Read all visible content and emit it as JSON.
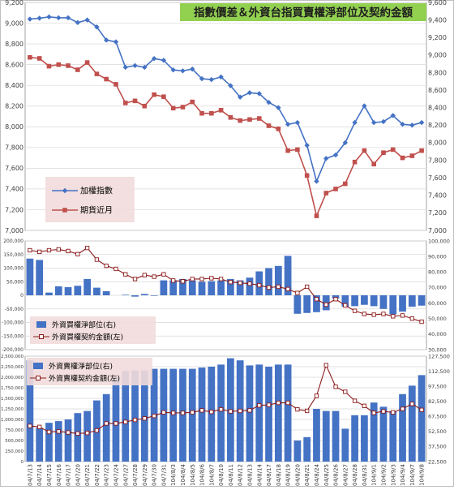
{
  "title": "指數價差＆外資台指買賣權淨部位及契約金額",
  "dates": [
    "104/7/13",
    "104/7/14",
    "104/7/15",
    "104/7/16",
    "104/7/17",
    "104/7/20",
    "104/7/21",
    "104/7/22",
    "104/7/23",
    "104/7/24",
    "104/7/27",
    "104/7/28",
    "104/7/29",
    "104/7/30",
    "104/7/31",
    "104/8/3",
    "104/8/4",
    "104/8/5",
    "104/8/6",
    "104/8/7",
    "104/8/10",
    "104/8/11",
    "104/8/12",
    "104/8/13",
    "104/8/14",
    "104/8/17",
    "104/8/18",
    "104/8/19",
    "104/8/20",
    "104/8/21",
    "104/8/24",
    "104/8/25",
    "104/8/26",
    "104/8/27",
    "104/8/28",
    "104/8/31",
    "104/9/1",
    "104/9/2",
    "104/9/3",
    "104/9/4",
    "104/9/7",
    "104/9/8"
  ],
  "chart_data": [
    {
      "type": "line",
      "title": "指數價差＆外資台指買賣權淨部位及契約金額",
      "y_left": {
        "ticks": [
          7000,
          7200,
          7400,
          7600,
          7800,
          8000,
          8200,
          8400,
          8600,
          8800,
          9000,
          9200
        ],
        "range": [
          7000,
          9200
        ]
      },
      "y_right": {
        "ticks": [
          7000,
          7200,
          7400,
          7600,
          7800,
          8000,
          8200,
          8400,
          8600,
          8800,
          9000,
          9200,
          9400,
          9600
        ],
        "range": [
          7000,
          9600
        ]
      },
      "legend_position": "bottom-left",
      "grid": true,
      "series": [
        {
          "name": "加權指數",
          "color": "#4472c4",
          "marker": "diamond",
          "axis": "right",
          "values": [
            9410,
            9420,
            9435,
            9425,
            9425,
            9370,
            9400,
            9320,
            9170,
            9150,
            8860,
            8880,
            8860,
            8960,
            8940,
            8830,
            8820,
            8840,
            8730,
            8720,
            8750,
            8650,
            8520,
            8570,
            8560,
            8460,
            8400,
            8210,
            8230,
            7970,
            7560,
            7820,
            7860,
            8000,
            8230,
            8420,
            8230,
            8240,
            8310,
            8210,
            8200,
            8230
          ]
        },
        {
          "name": "期貨近月",
          "color": "#c0504d",
          "marker": "square",
          "axis": "left",
          "values": [
            8670,
            8660,
            8585,
            8600,
            8590,
            8550,
            8620,
            8510,
            8460,
            8410,
            8230,
            8250,
            8200,
            8310,
            8290,
            8180,
            8190,
            8240,
            8130,
            8130,
            8160,
            8090,
            8060,
            8070,
            8080,
            8010,
            7980,
            7770,
            7780,
            7530,
            7140,
            7360,
            7400,
            7450,
            7660,
            7770,
            7640,
            7750,
            7780,
            7700,
            7720,
            7770
          ]
        }
      ]
    },
    {
      "type": "bar",
      "y_left": {
        "ticks": [
          -200000,
          -150000,
          -100000,
          -50000,
          0,
          50000,
          100000,
          150000,
          200000
        ],
        "range": [
          -200000,
          200000
        ]
      },
      "y_right": {
        "ticks": [
          30000,
          40000,
          50000,
          60000,
          70000,
          80000,
          90000,
          100000
        ],
        "range": [
          30000,
          100000
        ]
      },
      "legend_position": "bottom-left",
      "series": [
        {
          "name": "外資買權淨部位(右)",
          "color": "#4472c4",
          "kind": "bar",
          "axis": "left",
          "values": [
            135000,
            130000,
            10000,
            33000,
            30000,
            35000,
            60000,
            28000,
            15000,
            0,
            2000,
            -5000,
            5000,
            -2000,
            55000,
            55000,
            60000,
            55000,
            50000,
            52000,
            55000,
            60000,
            55000,
            65000,
            88000,
            100000,
            108000,
            145000,
            -68000,
            -65000,
            -62000,
            -55000,
            -12000,
            -42000,
            -40000,
            -35000,
            -40000,
            -50000,
            -70000,
            -60000,
            -42000,
            -38000
          ]
        },
        {
          "name": "外資買權契約金額(左)",
          "color": "#8b1a1a",
          "marker": "open-square",
          "kind": "line",
          "axis": "right",
          "values": [
            94000,
            93000,
            94000,
            94500,
            93500,
            91500,
            95500,
            88000,
            84000,
            82000,
            78500,
            75500,
            78000,
            77000,
            78500,
            74500,
            74000,
            75500,
            75500,
            76000,
            75500,
            73500,
            73000,
            72500,
            71500,
            70000,
            70500,
            69000,
            66500,
            70500,
            62500,
            59000,
            62500,
            58500,
            55000,
            53000,
            52500,
            53000,
            51500,
            52000,
            50000,
            48000
          ]
        }
      ]
    },
    {
      "type": "bar",
      "y_left": {
        "ticks": [
          0,
          250000,
          500000,
          750000,
          1000000,
          1250000,
          1500000,
          1750000,
          2000000,
          2250000,
          2500000
        ],
        "range": [
          0,
          2500000
        ]
      },
      "y_right": {
        "ticks": [
          22500,
          37500,
          52500,
          67500,
          82500,
          97500,
          112500,
          127500
        ],
        "range": [
          22500,
          127500
        ]
      },
      "legend_position": "top-left",
      "series": [
        {
          "name": "外資賣權淨部位(右)",
          "color": "#4472c4",
          "kind": "bar",
          "axis": "left",
          "values": [
            2400000,
            800000,
            920000,
            960000,
            1000000,
            1150000,
            1200000,
            1450000,
            1600000,
            2000000,
            2150000,
            2160000,
            2160000,
            2200000,
            2200000,
            2200000,
            2200000,
            2200000,
            2230000,
            2250000,
            2300000,
            2450000,
            2400000,
            2280000,
            2300000,
            2250000,
            2300000,
            2300000,
            500000,
            580000,
            1250000,
            1200000,
            1200000,
            780000,
            1100000,
            1100000,
            1400000,
            1300000,
            1200000,
            1600000,
            1800000,
            2050000
          ]
        },
        {
          "name": "外資賣權契約金額(左)",
          "color": "#8b1a1a",
          "marker": "open-square",
          "kind": "line",
          "axis": "right",
          "values": [
            58000,
            57000,
            52000,
            52500,
            51500,
            50500,
            51000,
            53500,
            60500,
            60500,
            62000,
            64000,
            65500,
            68000,
            71500,
            71000,
            71000,
            71500,
            73500,
            72000,
            74500,
            72500,
            73000,
            73500,
            78500,
            79000,
            81000,
            81000,
            74500,
            73000,
            88000,
            118500,
            97000,
            92000,
            83000,
            78000,
            71000,
            72500,
            71500,
            75000,
            80000,
            74000
          ]
        }
      ]
    }
  ]
}
